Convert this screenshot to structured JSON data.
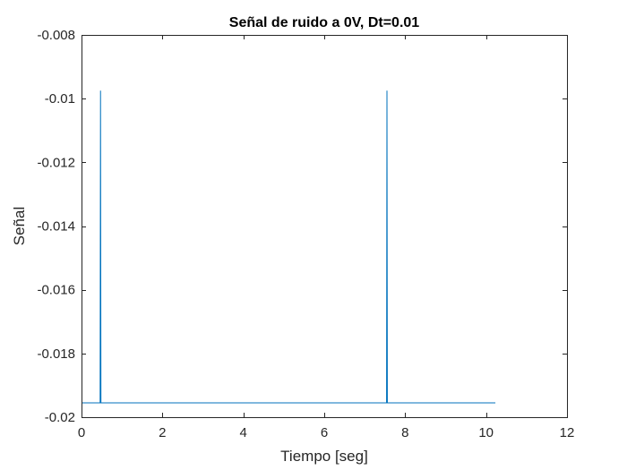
{
  "chart_data": {
    "type": "line",
    "title": "Señal de ruido a 0V, Dt=0.01",
    "xlabel": "Tiempo [seg]",
    "ylabel": "Señal",
    "xlim": [
      0,
      12
    ],
    "ylim": [
      -0.02,
      -0.008
    ],
    "xticks": [
      0,
      2,
      4,
      6,
      8,
      10,
      12
    ],
    "xtick_labels": [
      "0",
      "2",
      "4",
      "6",
      "8",
      "10",
      "12"
    ],
    "yticks": [
      -0.02,
      -0.018,
      -0.016,
      -0.014,
      -0.012,
      -0.01,
      -0.008
    ],
    "ytick_labels": [
      "-0.02",
      "-0.018",
      "-0.016",
      "-0.014",
      "-0.012",
      "-0.01",
      "-0.008"
    ],
    "grid": false,
    "series": [
      {
        "color": "#0072BD",
        "x": [
          0,
          0.46,
          0.47,
          0.48,
          7.54,
          7.55,
          7.56,
          10.23
        ],
        "y": [
          -0.01955,
          -0.01955,
          -0.00975,
          -0.01955,
          -0.01955,
          -0.00975,
          -0.01955,
          -0.01955
        ]
      }
    ]
  }
}
